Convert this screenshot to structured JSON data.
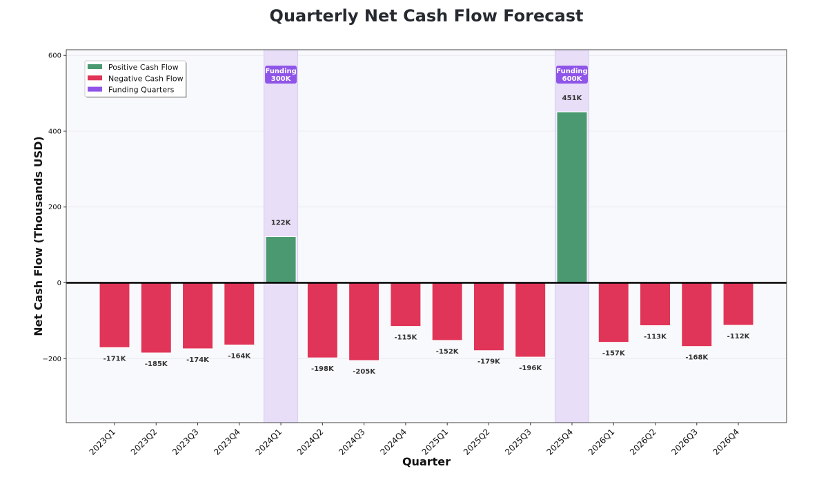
{
  "chart_data": {
    "type": "bar",
    "title": "Quarterly Net Cash Flow Forecast",
    "xlabel": "Quarter",
    "ylabel": "Net Cash Flow (Thousands USD)",
    "ylim": [
      -369,
      615
    ],
    "yticks": [
      -200,
      0,
      200,
      400,
      600
    ],
    "ytick_labels": [
      "−200",
      "0",
      "200",
      "400",
      "600"
    ],
    "grid": true,
    "legend_position": "top-left",
    "categories": [
      "2023Q1",
      "2023Q2",
      "2023Q3",
      "2023Q4",
      "2024Q1",
      "2024Q2",
      "2024Q3",
      "2024Q4",
      "2025Q1",
      "2025Q2",
      "2025Q3",
      "2025Q4",
      "2026Q1",
      "2026Q2",
      "2026Q3",
      "2026Q4"
    ],
    "values": [
      -171,
      -185,
      -174,
      -164,
      122,
      -198,
      -205,
      -115,
      -152,
      -179,
      -196,
      451,
      -157,
      -113,
      -168,
      -112
    ],
    "data_labels": [
      "-171K",
      "-185K",
      "-174K",
      "-164K",
      "122K",
      "-198K",
      "-205K",
      "-115K",
      "-152K",
      "-179K",
      "-196K",
      "451K",
      "-157K",
      "-113K",
      "-168K",
      "-112K"
    ],
    "funding": [
      {
        "quarter": "2024Q1",
        "label": "Funding\n300K",
        "line1": "Funding",
        "line2": "300K"
      },
      {
        "quarter": "2025Q4",
        "label": "Funding\n600K",
        "line1": "Funding",
        "line2": "600K"
      }
    ],
    "legend": [
      "Positive Cash Flow",
      "Negative Cash Flow",
      "Funding Quarters"
    ],
    "colors": {
      "positive": "#4a9970",
      "negative": "#e03558",
      "funding_band": "#e8def8",
      "funding_badge": "#8f55e8",
      "plot_bg": "#f8f9fc"
    }
  }
}
